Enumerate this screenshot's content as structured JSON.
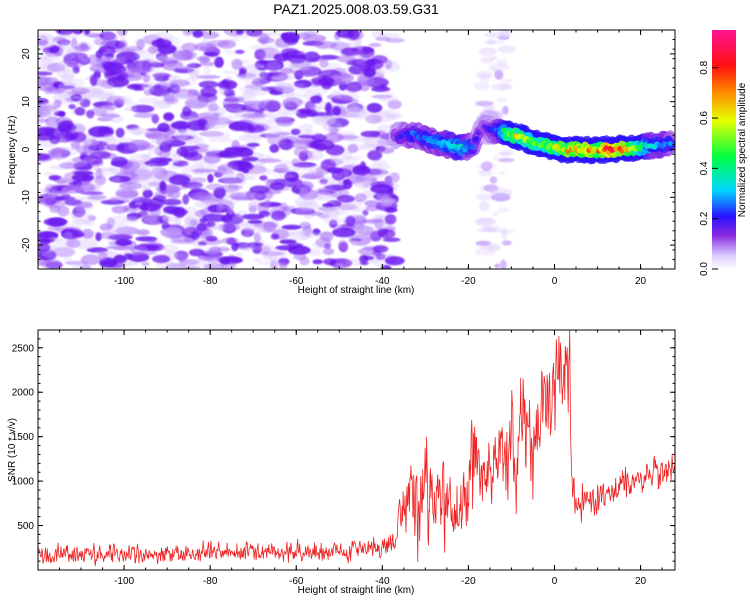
{
  "figure_title": "PAZ1.2025.008.03.59.G31",
  "chart_data": [
    {
      "type": "heatmap",
      "title": "PAZ1.2025.008.03.59.G31",
      "xlabel": "Height of straight line (km)",
      "ylabel": "Frequency (Hz)",
      "xlim": [
        -120,
        28
      ],
      "ylim": [
        -25,
        25
      ],
      "x_ticks": [
        -100,
        -80,
        -60,
        -40,
        -20,
        0,
        20
      ],
      "y_ticks": [
        -20,
        -10,
        0,
        10,
        20
      ],
      "grid": false,
      "colorbar": {
        "label": "Normalized spectral amplitude",
        "range": [
          0.0,
          0.95
        ],
        "ticks": [
          "0.0",
          "0.2",
          "0.4",
          "0.6",
          "0.8"
        ],
        "colormap": "rainbow: violet, blue, cyan, green, yellow, orange, red, magenta"
      },
      "noise_region": {
        "x_range": [
          -120,
          -37
        ],
        "y_range": [
          -25,
          25
        ],
        "amplitude": [
          0.0,
          0.25
        ],
        "color": "#7d2ef0"
      },
      "secondary_noise_band": {
        "x_range": [
          -17,
          -11
        ],
        "y_range": [
          -25,
          25
        ],
        "amplitude": [
          0.0,
          0.12
        ]
      },
      "ridge": {
        "x": [
          -37,
          -35,
          -33,
          -31,
          -29,
          -27,
          -25,
          -23,
          -21,
          -19,
          -17,
          -15,
          -13,
          -11,
          -9,
          -7,
          -5,
          -3,
          -1,
          1,
          3,
          5,
          7,
          9,
          11,
          13,
          15,
          17,
          19,
          21,
          23,
          25,
          27
        ],
        "frequency": [
          2.8,
          3.0,
          3.2,
          2.6,
          2.0,
          1.5,
          1.0,
          0.6,
          0.3,
          0.8,
          4.5,
          4.2,
          3.8,
          3.5,
          2.8,
          2.2,
          1.6,
          1.1,
          0.6,
          0.3,
          0.0,
          0.0,
          -0.1,
          -0.1,
          -0.1,
          0.0,
          0.1,
          0.2,
          0.4,
          0.6,
          0.8,
          1.0,
          1.1
        ],
        "amplitude": [
          0.18,
          0.22,
          0.27,
          0.25,
          0.3,
          0.32,
          0.36,
          0.4,
          0.35,
          0.25,
          0.15,
          0.2,
          0.28,
          0.55,
          0.65,
          0.6,
          0.55,
          0.52,
          0.58,
          0.62,
          0.7,
          0.75,
          0.78,
          0.72,
          0.8,
          0.88,
          0.95,
          0.8,
          0.55,
          0.4,
          0.35,
          0.3,
          0.28
        ]
      }
    },
    {
      "type": "line",
      "xlabel": "Height of straight line (km)",
      "ylabel": "SNR (10 * v/v)",
      "xlim": [
        -120,
        28
      ],
      "ylim": [
        0,
        2700
      ],
      "x_ticks": [
        -100,
        -80,
        -60,
        -40,
        -20,
        0,
        20
      ],
      "y_ticks": [
        500,
        1000,
        1500,
        2000,
        2500
      ],
      "grid": false,
      "series": [
        {
          "color": "#ee2222",
          "envelope": {
            "x": [
              -120,
              -110,
              -100,
              -90,
              -80,
              -70,
              -60,
              -50,
              -40,
              -37,
              -36,
              -34,
              -32,
              -30,
              -28,
              -26,
              -24,
              -22,
              -20,
              -19,
              -18,
              -17,
              -16,
              -14,
              -12,
              -11,
              -10,
              -9,
              -8,
              -7,
              -6,
              -5,
              -4,
              -3,
              -2,
              -1,
              0,
              1,
              2,
              3,
              3.5,
              4,
              5,
              8,
              12,
              16,
              20,
              24,
              28
            ],
            "center": [
              170,
              175,
              180,
              185,
              190,
              195,
              200,
              210,
              240,
              280,
              650,
              900,
              700,
              1050,
              650,
              700,
              700,
              550,
              1000,
              1350,
              1200,
              1100,
              1000,
              1250,
              1300,
              1400,
              1600,
              900,
              1550,
              1850,
              1400,
              1200,
              1500,
              1850,
              1900,
              1950,
              1850,
              2100,
              2000,
              2250,
              2450,
              900,
              750,
              800,
              850,
              950,
              1000,
              1100,
              1150
            ],
            "spread": [
              110,
              110,
              110,
              110,
              110,
              110,
              110,
              110,
              130,
              150,
              350,
              450,
              450,
              600,
              450,
              450,
              450,
              400,
              500,
              700,
              450,
              400,
              350,
              400,
              400,
              450,
              500,
              500,
              650,
              650,
              600,
              450,
              550,
              700,
              650,
              650,
              600,
              550,
              500,
              450,
              300,
              200,
              180,
              170,
              170,
              170,
              170,
              170,
              180
            ]
          },
          "peak": {
            "x": 3.5,
            "y": 2700
          }
        }
      ]
    }
  ]
}
